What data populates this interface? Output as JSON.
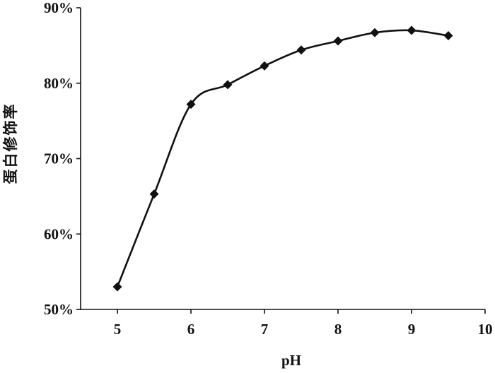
{
  "chart_data": {
    "type": "line",
    "title": "",
    "xlabel": "pH",
    "ylabel": "蛋白修饰率",
    "xlim": [
      4.5,
      10
    ],
    "ylim": [
      50,
      90
    ],
    "xticks": [
      5,
      6,
      7,
      8,
      9,
      10
    ],
    "yticks": [
      50,
      60,
      70,
      80,
      90
    ],
    "xtick_labels": [
      "5",
      "6",
      "7",
      "8",
      "9",
      "10"
    ],
    "ytick_labels": [
      "50%",
      "60%",
      "70%",
      "80%",
      "90%"
    ],
    "grid": false,
    "legend": "none",
    "series": [
      {
        "marker": "diamond",
        "smooth": true,
        "color": "#111111",
        "x": [
          5,
          5.5,
          6,
          6.5,
          7,
          7.5,
          8,
          8.5,
          9,
          9.5
        ],
        "y": [
          53.0,
          65.3,
          77.2,
          79.8,
          82.3,
          84.4,
          85.6,
          86.7,
          87.0,
          86.3
        ]
      }
    ]
  }
}
